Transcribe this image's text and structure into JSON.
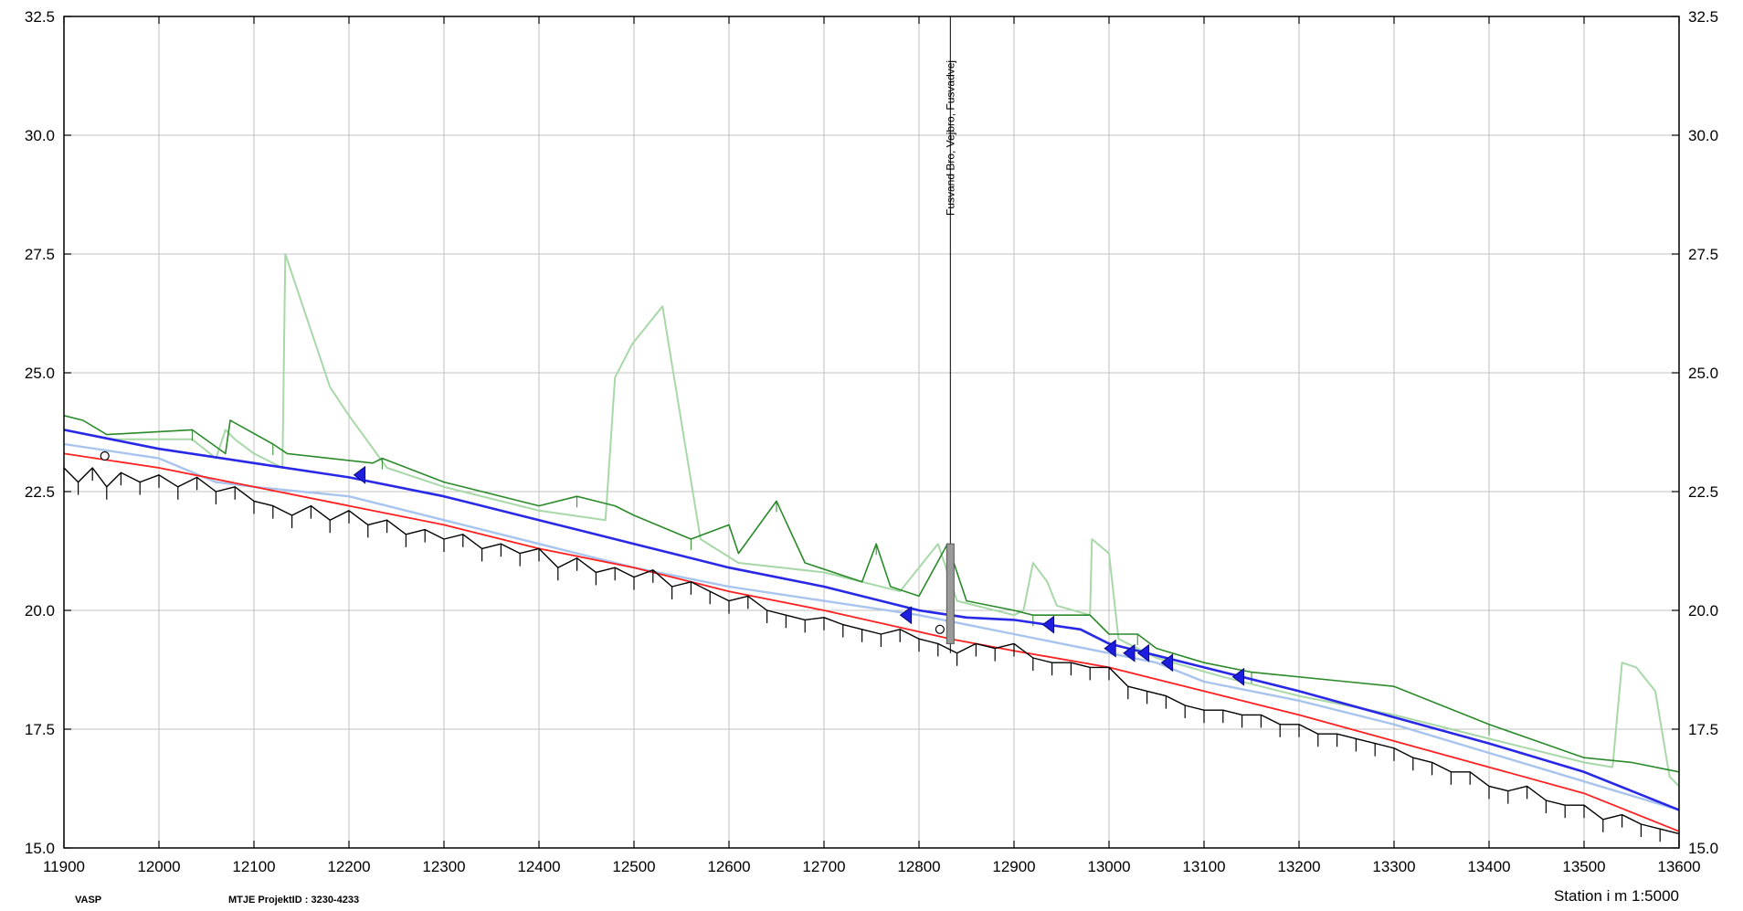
{
  "chart_data": {
    "type": "line",
    "x_range": [
      11900,
      13600
    ],
    "y_range": [
      15.0,
      32.5
    ],
    "x_ticks": [
      "11900",
      "12000",
      "12100",
      "12200",
      "12300",
      "12400",
      "12500",
      "12600",
      "12700",
      "12800",
      "12900",
      "13000",
      "13100",
      "13200",
      "13300",
      "13400",
      "13500",
      "13600"
    ],
    "y_ticks": [
      "15.0",
      "17.5",
      "20.0",
      "22.5",
      "25.0",
      "27.5",
      "30.0",
      "32.5"
    ],
    "grid": true,
    "footer": {
      "left": "VASP",
      "mid": "MTJE   ProjektID : 3230-4233",
      "right": "Station i m  1:5000"
    },
    "bridge": {
      "station": 12833,
      "label": "Fusvand Bro, Vejbro, Fusvadvej"
    },
    "colors": {
      "bottom": "#000000",
      "red": "#ff2020",
      "blue": "#2828e6",
      "lightblue": "#a8c4ee",
      "darkgreen": "#2a8a2a",
      "lightgreen": "#a8d8a8",
      "grid": "#c0c0c0"
    },
    "series": [
      {
        "key": "lightgreen",
        "points": [
          [
            11900,
            23.8
          ],
          [
            11950,
            23.6
          ],
          [
            12035,
            23.6
          ],
          [
            12060,
            23.2
          ],
          [
            12070,
            23.8
          ],
          [
            12080,
            23.6
          ],
          [
            12100,
            23.3
          ],
          [
            12130,
            23.0
          ],
          [
            12133,
            27.5
          ],
          [
            12175,
            25.0
          ],
          [
            12180,
            24.7
          ],
          [
            12200,
            24.1
          ],
          [
            12240,
            23.0
          ],
          [
            12300,
            22.6
          ],
          [
            12400,
            22.1
          ],
          [
            12470,
            21.9
          ],
          [
            12480,
            24.9
          ],
          [
            12498,
            25.6
          ],
          [
            12530,
            26.4
          ],
          [
            12570,
            21.5
          ],
          [
            12610,
            21.0
          ],
          [
            12700,
            20.8
          ],
          [
            12780,
            20.4
          ],
          [
            12820,
            21.4
          ],
          [
            12840,
            20.2
          ],
          [
            12900,
            19.9
          ],
          [
            12910,
            20.0
          ],
          [
            12920,
            21.0
          ],
          [
            12935,
            20.6
          ],
          [
            12945,
            20.1
          ],
          [
            12980,
            19.9
          ],
          [
            12982,
            21.5
          ],
          [
            13000,
            21.2
          ],
          [
            13010,
            19.4
          ],
          [
            13050,
            19.0
          ],
          [
            13120,
            18.6
          ],
          [
            13200,
            18.2
          ],
          [
            13300,
            17.8
          ],
          [
            13400,
            17.3
          ],
          [
            13500,
            16.8
          ],
          [
            13530,
            16.7
          ],
          [
            13540,
            18.9
          ],
          [
            13555,
            18.8
          ],
          [
            13575,
            18.3
          ],
          [
            13590,
            16.5
          ],
          [
            13600,
            16.3
          ]
        ]
      },
      {
        "key": "darkgreen",
        "points": [
          [
            11900,
            24.1
          ],
          [
            11920,
            24.0
          ],
          [
            11945,
            23.7
          ],
          [
            12035,
            23.8
          ],
          [
            12070,
            23.3
          ],
          [
            12075,
            24.0
          ],
          [
            12120,
            23.5
          ],
          [
            12135,
            23.3
          ],
          [
            12225,
            23.1
          ],
          [
            12235,
            23.2
          ],
          [
            12300,
            22.7
          ],
          [
            12400,
            22.2
          ],
          [
            12440,
            22.4
          ],
          [
            12480,
            22.2
          ],
          [
            12500,
            22.0
          ],
          [
            12560,
            21.5
          ],
          [
            12600,
            21.8
          ],
          [
            12610,
            21.2
          ],
          [
            12650,
            22.3
          ],
          [
            12680,
            21.0
          ],
          [
            12740,
            20.6
          ],
          [
            12755,
            21.4
          ],
          [
            12770,
            20.5
          ],
          [
            12800,
            20.3
          ],
          [
            12830,
            21.4
          ],
          [
            12850,
            20.2
          ],
          [
            12900,
            20.0
          ],
          [
            12920,
            19.9
          ],
          [
            12980,
            19.9
          ],
          [
            13000,
            19.5
          ],
          [
            13030,
            19.5
          ],
          [
            13050,
            19.2
          ],
          [
            13100,
            18.9
          ],
          [
            13150,
            18.7
          ],
          [
            13250,
            18.5
          ],
          [
            13300,
            18.4
          ],
          [
            13400,
            17.6
          ],
          [
            13500,
            16.9
          ],
          [
            13550,
            16.8
          ],
          [
            13600,
            16.6
          ]
        ]
      },
      {
        "key": "lightblue",
        "points": [
          [
            11900,
            23.5
          ],
          [
            12000,
            23.2
          ],
          [
            12060,
            22.7
          ],
          [
            12100,
            22.6
          ],
          [
            12200,
            22.4
          ],
          [
            12300,
            21.9
          ],
          [
            12400,
            21.4
          ],
          [
            12500,
            20.9
          ],
          [
            12600,
            20.5
          ],
          [
            12700,
            20.2
          ],
          [
            12800,
            19.9
          ],
          [
            12850,
            19.7
          ],
          [
            12900,
            19.5
          ],
          [
            12950,
            19.3
          ],
          [
            13000,
            19.1
          ],
          [
            13050,
            18.9
          ],
          [
            13100,
            18.5
          ],
          [
            13200,
            18.1
          ],
          [
            13300,
            17.6
          ],
          [
            13400,
            17.0
          ],
          [
            13500,
            16.4
          ],
          [
            13600,
            15.8
          ]
        ]
      },
      {
        "key": "blue",
        "points": [
          [
            11900,
            23.8
          ],
          [
            12000,
            23.4
          ],
          [
            12100,
            23.1
          ],
          [
            12200,
            22.8
          ],
          [
            12300,
            22.4
          ],
          [
            12400,
            21.9
          ],
          [
            12500,
            21.4
          ],
          [
            12600,
            20.9
          ],
          [
            12700,
            20.5
          ],
          [
            12800,
            20.0
          ],
          [
            12850,
            19.85
          ],
          [
            12900,
            19.8
          ],
          [
            12970,
            19.6
          ],
          [
            13000,
            19.3
          ],
          [
            13050,
            19.05
          ],
          [
            13100,
            18.8
          ],
          [
            13200,
            18.3
          ],
          [
            13300,
            17.75
          ],
          [
            13400,
            17.2
          ],
          [
            13500,
            16.6
          ],
          [
            13600,
            15.8
          ]
        ]
      },
      {
        "key": "red",
        "points": [
          [
            11900,
            23.3
          ],
          [
            12000,
            23.0
          ],
          [
            12100,
            22.6
          ],
          [
            12200,
            22.2
          ],
          [
            12300,
            21.8
          ],
          [
            12400,
            21.3
          ],
          [
            12500,
            20.9
          ],
          [
            12600,
            20.4
          ],
          [
            12700,
            20.0
          ],
          [
            12800,
            19.55
          ],
          [
            12833,
            19.4
          ],
          [
            12900,
            19.15
          ],
          [
            13000,
            18.8
          ],
          [
            13100,
            18.3
          ],
          [
            13200,
            17.8
          ],
          [
            13300,
            17.25
          ],
          [
            13400,
            16.7
          ],
          [
            13500,
            16.15
          ],
          [
            13600,
            15.35
          ]
        ]
      },
      {
        "key": "bottom",
        "points": [
          [
            11900,
            23.0
          ],
          [
            11915,
            22.7
          ],
          [
            11930,
            23.0
          ],
          [
            11945,
            22.6
          ],
          [
            11960,
            22.9
          ],
          [
            11980,
            22.7
          ],
          [
            12000,
            22.85
          ],
          [
            12020,
            22.6
          ],
          [
            12040,
            22.8
          ],
          [
            12060,
            22.5
          ],
          [
            12080,
            22.6
          ],
          [
            12100,
            22.3
          ],
          [
            12120,
            22.2
          ],
          [
            12140,
            22.0
          ],
          [
            12160,
            22.2
          ],
          [
            12180,
            21.9
          ],
          [
            12200,
            22.1
          ],
          [
            12220,
            21.8
          ],
          [
            12240,
            21.9
          ],
          [
            12260,
            21.6
          ],
          [
            12280,
            21.7
          ],
          [
            12300,
            21.5
          ],
          [
            12320,
            21.6
          ],
          [
            12340,
            21.3
          ],
          [
            12360,
            21.4
          ],
          [
            12380,
            21.2
          ],
          [
            12400,
            21.3
          ],
          [
            12420,
            20.9
          ],
          [
            12440,
            21.1
          ],
          [
            12460,
            20.8
          ],
          [
            12480,
            20.9
          ],
          [
            12500,
            20.7
          ],
          [
            12520,
            20.85
          ],
          [
            12540,
            20.5
          ],
          [
            12560,
            20.6
          ],
          [
            12580,
            20.4
          ],
          [
            12600,
            20.2
          ],
          [
            12620,
            20.3
          ],
          [
            12640,
            20.0
          ],
          [
            12660,
            19.9
          ],
          [
            12680,
            19.8
          ],
          [
            12700,
            19.85
          ],
          [
            12720,
            19.7
          ],
          [
            12740,
            19.6
          ],
          [
            12760,
            19.5
          ],
          [
            12780,
            19.6
          ],
          [
            12800,
            19.4
          ],
          [
            12820,
            19.3
          ],
          [
            12840,
            19.1
          ],
          [
            12860,
            19.3
          ],
          [
            12880,
            19.2
          ],
          [
            12900,
            19.3
          ],
          [
            12920,
            19.0
          ],
          [
            12940,
            18.9
          ],
          [
            12960,
            18.9
          ],
          [
            12980,
            18.8
          ],
          [
            13000,
            18.8
          ],
          [
            13020,
            18.4
          ],
          [
            13040,
            18.3
          ],
          [
            13060,
            18.2
          ],
          [
            13080,
            18.0
          ],
          [
            13100,
            17.9
          ],
          [
            13120,
            17.9
          ],
          [
            13140,
            17.8
          ],
          [
            13160,
            17.8
          ],
          [
            13180,
            17.6
          ],
          [
            13200,
            17.6
          ],
          [
            13220,
            17.4
          ],
          [
            13240,
            17.4
          ],
          [
            13260,
            17.3
          ],
          [
            13280,
            17.2
          ],
          [
            13300,
            17.1
          ],
          [
            13320,
            16.9
          ],
          [
            13340,
            16.8
          ],
          [
            13360,
            16.6
          ],
          [
            13380,
            16.6
          ],
          [
            13400,
            16.3
          ],
          [
            13420,
            16.2
          ],
          [
            13440,
            16.3
          ],
          [
            13460,
            16.0
          ],
          [
            13480,
            15.9
          ],
          [
            13500,
            15.9
          ],
          [
            13520,
            15.6
          ],
          [
            13540,
            15.7
          ],
          [
            13560,
            15.5
          ],
          [
            13580,
            15.4
          ],
          [
            13600,
            15.3
          ]
        ]
      }
    ],
    "markers": [
      {
        "x": 12215,
        "y": 22.85
      },
      {
        "x": 12790,
        "y": 19.9
      },
      {
        "x": 12940,
        "y": 19.7
      },
      {
        "x": 13005,
        "y": 19.2
      },
      {
        "x": 13025,
        "y": 19.1
      },
      {
        "x": 13040,
        "y": 19.1
      },
      {
        "x": 13065,
        "y": 18.9
      },
      {
        "x": 13140,
        "y": 18.6
      }
    ],
    "circles": [
      {
        "x": 11943,
        "y": 23.25
      },
      {
        "x": 12822,
        "y": 19.6
      }
    ]
  }
}
